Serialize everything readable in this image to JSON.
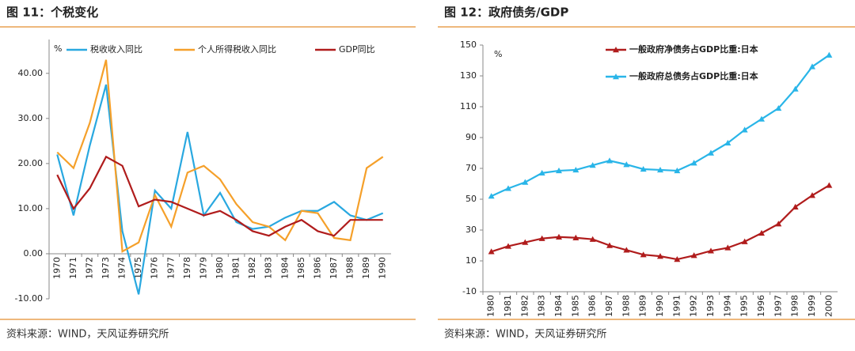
{
  "chart_data": [
    {
      "type": "line",
      "title": "图 11：个税变化",
      "source": "资料来源：WIND，天风证券研究所",
      "y_unit": "%",
      "categories": [
        "1970",
        "1971",
        "1972",
        "1973",
        "1974",
        "1975",
        "1976",
        "1977",
        "1978",
        "1979",
        "1980",
        "1981",
        "1982",
        "1983",
        "1984",
        "1985",
        "1986",
        "1987",
        "1988",
        "1989",
        "1990"
      ],
      "series": [
        {
          "name": "税收收入同比",
          "color": "#29a8e0",
          "values": [
            22,
            8.5,
            24,
            37.5,
            5,
            -9,
            14,
            10,
            27,
            8.5,
            13.5,
            7,
            5.5,
            6,
            8,
            9.5,
            9.5,
            11.5,
            8.5,
            7.5,
            9
          ]
        },
        {
          "name": "个人所得税收入同比",
          "color": "#f5a02a",
          "values": [
            22.5,
            19,
            29,
            43,
            0.5,
            2.5,
            13,
            6,
            18,
            19.5,
            16.5,
            11,
            7,
            6,
            3,
            9.5,
            9,
            3.5,
            3,
            19,
            21.5
          ]
        },
        {
          "name": "GDP同比",
          "color": "#b01c1c",
          "values": [
            17.5,
            10,
            14.5,
            21.5,
            19.5,
            10.5,
            12,
            11.5,
            10,
            8.5,
            9.5,
            7.5,
            5,
            4,
            6,
            7.5,
            5,
            4,
            7.5,
            7.5,
            7.5
          ]
        }
      ],
      "ylim": [
        -10,
        47.5
      ],
      "yticks": [
        {
          "value": -10,
          "label": "-10.00"
        },
        {
          "value": 0,
          "label": "0.00"
        },
        {
          "value": 10,
          "label": "10.00"
        },
        {
          "value": 20,
          "label": "20.00"
        },
        {
          "value": 30,
          "label": "30.00"
        },
        {
          "value": 40,
          "label": "40.00"
        }
      ],
      "legend": "top",
      "markers": false
    },
    {
      "type": "line",
      "title": "图 12：政府债务/GDP",
      "source": "资料来源：WIND，天风证券研究所",
      "y_unit": "%",
      "categories": [
        "1980",
        "1981",
        "1982",
        "1983",
        "1984",
        "1985",
        "1986",
        "1987",
        "1988",
        "1989",
        "1990",
        "1991",
        "1992",
        "1993",
        "1994",
        "1995",
        "1996",
        "1997",
        "1998",
        "1999",
        "2000"
      ],
      "series": [
        {
          "name": "一般政府净债务占GDP比重:日本",
          "color": "#b01c1c",
          "values": [
            16,
            19.5,
            22,
            24.5,
            25.5,
            25,
            24,
            20,
            17,
            14,
            13,
            11,
            13.5,
            16.5,
            18.5,
            22.5,
            28,
            34,
            45,
            52.5,
            59
          ]
        },
        {
          "name": "一般政府总债务占GDP比重:日本",
          "color": "#29b5e8",
          "values": [
            52,
            57,
            61,
            67,
            68.5,
            69,
            72,
            75,
            72.5,
            69.5,
            69,
            68.5,
            73.5,
            80,
            86.5,
            95,
            102,
            109,
            121.5,
            136,
            143.5
          ]
        }
      ],
      "ylim": [
        -10,
        150
      ],
      "yticks": [
        -10,
        10,
        30,
        50,
        70,
        90,
        110,
        130,
        150
      ],
      "legend": "top",
      "markers": true
    }
  ]
}
